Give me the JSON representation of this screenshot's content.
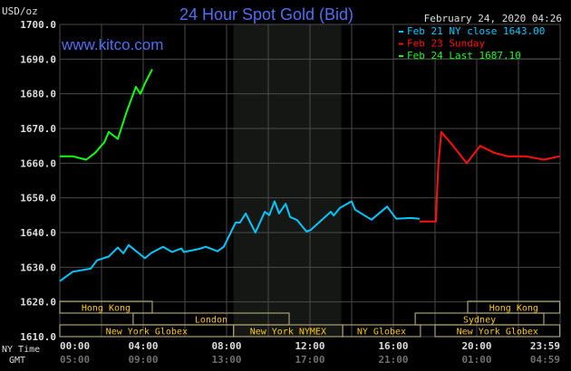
{
  "chart_data": {
    "type": "line",
    "title": "24 Hour Spot Gold (Bid)",
    "watermark": "www.kitco.com",
    "timestamp": "February 24, 2020 04:26",
    "ylabel": "USD/oz",
    "ylim": [
      1610,
      1700
    ],
    "y_ticks": [
      "1610.0",
      "1620.0",
      "1630.0",
      "1640.0",
      "1650.0",
      "1660.0",
      "1670.0",
      "1680.0",
      "1690.0",
      "1700.0"
    ],
    "x_row_labels": [
      "NY Time",
      "GMT"
    ],
    "x_ticks_ny": [
      "00:00",
      "04:00",
      "08:00",
      "12:00",
      "16:00",
      "20:00",
      "23:59"
    ],
    "x_ticks_gmt": [
      "05:00",
      "09:00",
      "13:00",
      "17:00",
      "21:00",
      "01:00",
      "04:59"
    ],
    "grid": true,
    "legend_placement": "top-right",
    "highlight_period": {
      "start": "08:20",
      "end": "13:30",
      "color": "#151715"
    },
    "series": [
      {
        "name": "Feb 21 NY close 1643.00",
        "color": "#00c8ff",
        "points": [
          [
            "00:00",
            1626
          ],
          [
            "00:37",
            1628.7
          ],
          [
            "01:29",
            1629.6
          ],
          [
            "01:47",
            1632.0
          ],
          [
            "02:21",
            1633.1
          ],
          [
            "02:47",
            1635.7
          ],
          [
            "03:03",
            1634
          ],
          [
            "03:18",
            1636.4
          ],
          [
            "04:05",
            1632.6
          ],
          [
            "04:23",
            1634.1
          ],
          [
            "04:57",
            1635.9
          ],
          [
            "05:23",
            1634.4
          ],
          [
            "05:50",
            1635.4
          ],
          [
            "05:57",
            1634.4
          ],
          [
            "06:42",
            1635.3
          ],
          [
            "07:00",
            1635.9
          ],
          [
            "07:34",
            1634.6
          ],
          [
            "07:52",
            1635.9
          ],
          [
            "08:26",
            1642.9
          ],
          [
            "08:39",
            1642.9
          ],
          [
            "08:55",
            1645.5
          ],
          [
            "09:23",
            1640
          ],
          [
            "09:50",
            1646
          ],
          [
            "10:03",
            1645
          ],
          [
            "10:18",
            1649
          ],
          [
            "10:31",
            1645.5
          ],
          [
            "10:50",
            1648.3
          ],
          [
            "11:03",
            1644.5
          ],
          [
            "11:23",
            1643.6
          ],
          [
            "11:50",
            1640.3
          ],
          [
            "12:03",
            1640.8
          ],
          [
            "13:00",
            1646
          ],
          [
            "13:08",
            1644.9
          ],
          [
            "13:26",
            1647.1
          ],
          [
            "14:00",
            1649
          ],
          [
            "14:10",
            1646.6
          ],
          [
            "14:57",
            1643.7
          ],
          [
            "15:42",
            1647.5
          ],
          [
            "16:08",
            1644
          ],
          [
            "16:50",
            1644.2
          ],
          [
            "17:16",
            1644
          ]
        ]
      },
      {
        "name": "Feb 23 Sunday",
        "color": "#ff1010",
        "points": [
          [
            "17:16",
            1643.2
          ],
          [
            "18:03",
            1643.2
          ],
          [
            "18:05",
            1650
          ],
          [
            "18:10",
            1660
          ],
          [
            "18:18",
            1669
          ],
          [
            "18:52",
            1665
          ],
          [
            "19:31",
            1660
          ],
          [
            "20:10",
            1665
          ],
          [
            "20:50",
            1663
          ],
          [
            "21:29",
            1662
          ],
          [
            "22:21",
            1662
          ],
          [
            "23:13",
            1661
          ],
          [
            "23:59",
            1662
          ]
        ]
      },
      {
        "name": "Feb 24 Last 1687.10",
        "color": "#10ff10",
        "points": [
          [
            "00:00",
            1662
          ],
          [
            "00:37",
            1662
          ],
          [
            "01:16",
            1661
          ],
          [
            "01:42",
            1663
          ],
          [
            "02:08",
            1666
          ],
          [
            "02:21",
            1669
          ],
          [
            "02:47",
            1667
          ],
          [
            "03:13",
            1675
          ],
          [
            "03:39",
            1682
          ],
          [
            "03:52",
            1680
          ],
          [
            "04:05",
            1683
          ],
          [
            "04:26",
            1687.1
          ]
        ]
      }
    ],
    "sessions": [
      {
        "label": "Hong Kong",
        "row": 1,
        "start": "00:00",
        "end": "04:26"
      },
      {
        "label": "Hong Kong",
        "row": 1,
        "start": "19:34",
        "end": "23:59"
      },
      {
        "label": "London",
        "row": 2,
        "start": "03:31",
        "end": "11:00"
      },
      {
        "label": "Sydney",
        "row": 2,
        "start": "17:03",
        "end": "23:13"
      },
      {
        "label": "New York Globex",
        "row": 3,
        "start": "00:00",
        "end": "08:20"
      },
      {
        "label": "New York NYMEX",
        "row": 3,
        "start": "08:20",
        "end": "13:34"
      },
      {
        "label": "NY Globex",
        "row": 3,
        "start": "13:34",
        "end": "17:18"
      },
      {
        "label": "New York Globex",
        "row": 3,
        "start": "18:00",
        "end": "23:59"
      }
    ],
    "colors": {
      "title": "#4f6ff0",
      "axis_text": "#dddddd",
      "gmt_text": "#6f6f6f",
      "grid": "#4a4a4a",
      "session_text": "#ffc800",
      "session_border": "#a8a070"
    }
  }
}
